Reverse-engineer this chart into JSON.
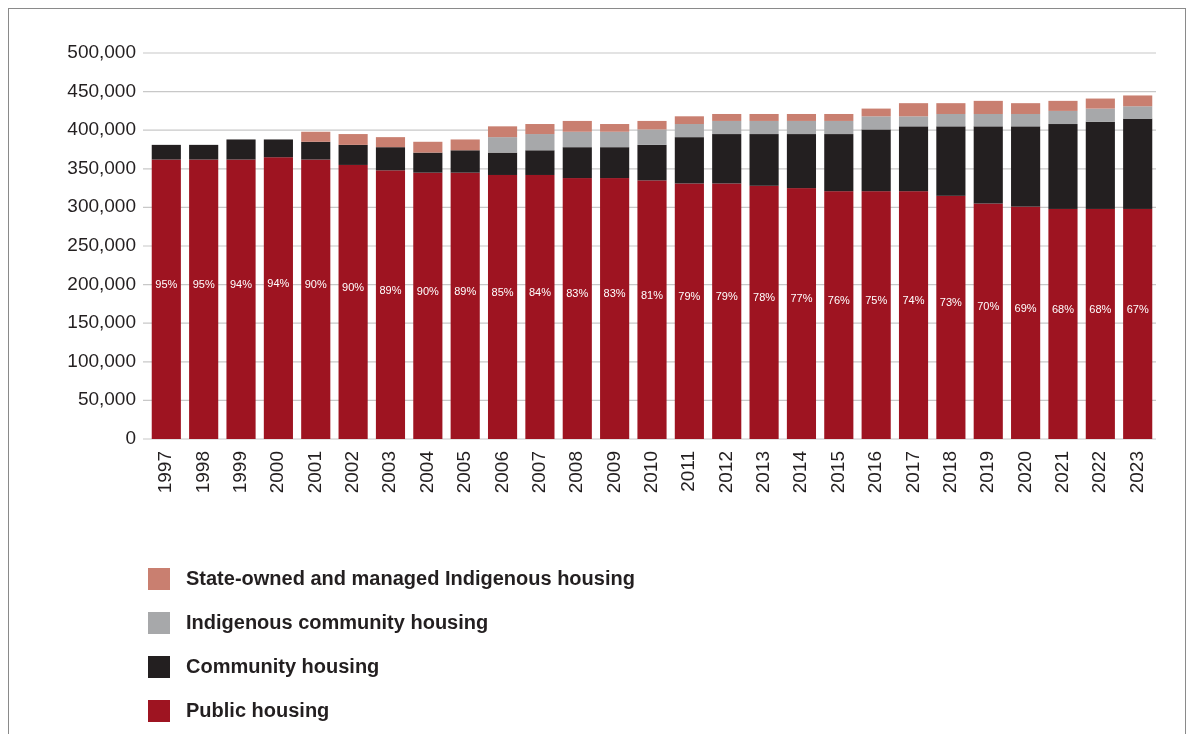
{
  "chart_data": {
    "type": "bar",
    "stacked": true,
    "categories": [
      "1997",
      "1998",
      "1999",
      "2000",
      "2001",
      "2002",
      "2003",
      "2004",
      "2005",
      "2006",
      "2007",
      "2008",
      "2009",
      "2010",
      "2011",
      "2012",
      "2013",
      "2014",
      "2015",
      "2016",
      "2017",
      "2018",
      "2019",
      "2020",
      "2021",
      "2022",
      "2023"
    ],
    "series": [
      {
        "name": "Public housing",
        "color": "#9e1421",
        "values": [
          362000,
          362000,
          362000,
          365000,
          362000,
          355000,
          348000,
          345000,
          345000,
          342000,
          342000,
          338000,
          338000,
          335000,
          331000,
          331000,
          328000,
          325000,
          321000,
          321000,
          321000,
          315000,
          305000,
          301000,
          298000,
          298000,
          298000
        ]
      },
      {
        "name": "Community housing",
        "color": "#231f20",
        "values": [
          19000,
          19000,
          26000,
          23000,
          23000,
          26000,
          30000,
          26000,
          29000,
          29000,
          32000,
          40000,
          40000,
          46000,
          60000,
          64000,
          67000,
          70000,
          74000,
          80000,
          84000,
          90000,
          100000,
          104000,
          110000,
          113000,
          117000
        ]
      },
      {
        "name": "Indigenous community housing",
        "color": "#a7a8aa",
        "values": [
          0,
          0,
          0,
          0,
          0,
          0,
          0,
          0,
          0,
          20000,
          21000,
          20000,
          20000,
          20000,
          17000,
          17000,
          17000,
          17000,
          17000,
          17000,
          13000,
          16000,
          16000,
          16000,
          17000,
          17000,
          16000
        ]
      },
      {
        "name": "State-owned and managed Indigenous housing",
        "color": "#c97f70",
        "values": [
          0,
          0,
          0,
          0,
          13000,
          14000,
          13000,
          14000,
          14000,
          14000,
          13000,
          14000,
          10000,
          11000,
          10000,
          9000,
          9000,
          9000,
          9000,
          10000,
          17000,
          14000,
          17000,
          14000,
          13000,
          13000,
          14000
        ]
      }
    ],
    "ylim": [
      0,
      500000
    ],
    "yticks": [
      {
        "value": 0,
        "label": "0"
      },
      {
        "value": 50000,
        "label": "50,000"
      },
      {
        "value": 100000,
        "label": "100,000"
      },
      {
        "value": 150000,
        "label": "150,000"
      },
      {
        "value": 200000,
        "label": "200,000"
      },
      {
        "value": 250000,
        "label": "250,000"
      },
      {
        "value": 300000,
        "label": "300,000"
      },
      {
        "value": 350000,
        "label": "350,000"
      },
      {
        "value": 400000,
        "label": "400,000"
      },
      {
        "value": 450000,
        "label": "450,000"
      },
      {
        "value": 500000,
        "label": "500,000"
      }
    ],
    "annotations": [
      "95%",
      "95%",
      "94%",
      "94%",
      "90%",
      "90%",
      "89%",
      "90%",
      "89%",
      "85%",
      "84%",
      "83%",
      "83%",
      "81%",
      "79%",
      "79%",
      "78%",
      "77%",
      "76%",
      "75%",
      "74%",
      "73%",
      "70%",
      "69%",
      "68%",
      "68%",
      "67%"
    ],
    "grid": "y",
    "legend": "bottom"
  }
}
